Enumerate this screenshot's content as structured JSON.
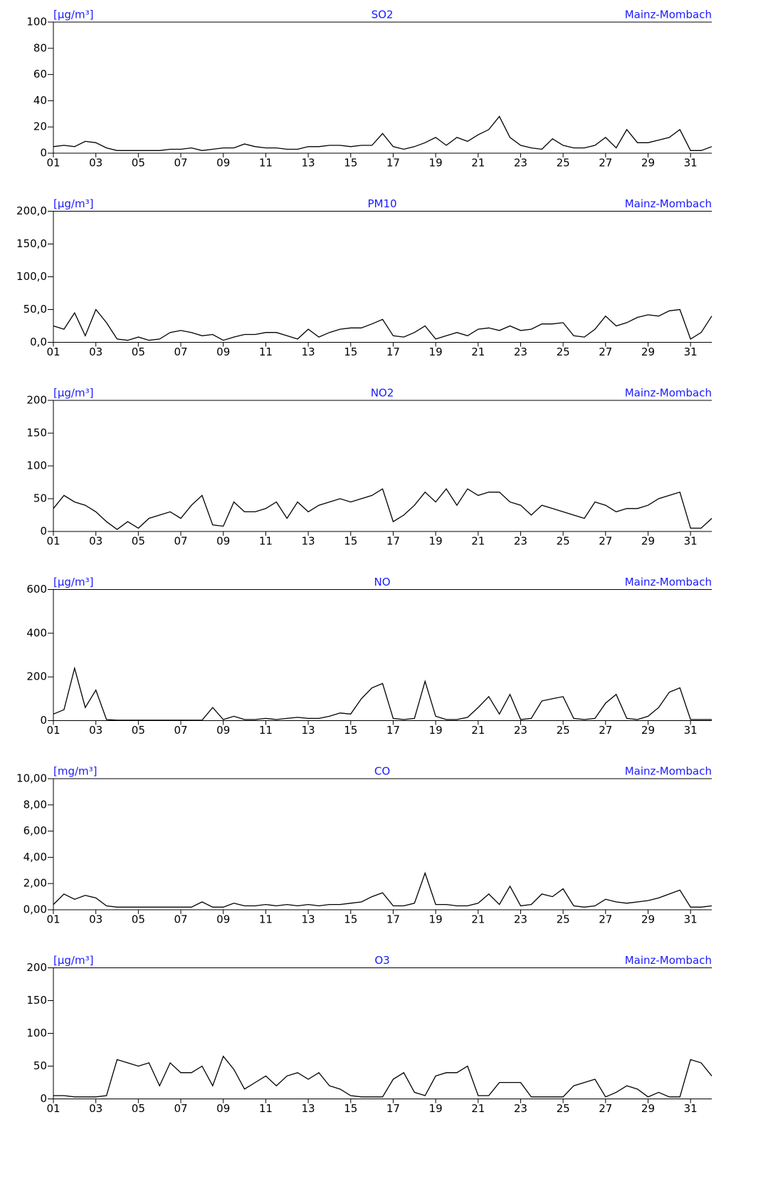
{
  "chart_data": [
    {
      "type": "line",
      "title": "SO2",
      "unit": "[µg/m³]",
      "station": "Mainz-Mombach",
      "color": "#000000",
      "x": [
        1,
        1.5,
        2,
        2.5,
        3,
        3.5,
        4,
        4.5,
        5,
        5.5,
        6,
        6.5,
        7,
        7.5,
        8,
        8.5,
        9,
        9.5,
        10,
        10.5,
        11,
        11.5,
        12,
        12.5,
        13,
        13.5,
        14,
        14.5,
        15,
        15.5,
        16,
        16.5,
        17,
        17.5,
        18,
        18.5,
        19,
        19.5,
        20,
        20.5,
        21,
        21.5,
        22,
        22.5,
        23,
        23.5,
        24,
        24.5,
        25,
        25.5,
        26,
        26.5,
        27,
        27.5,
        28,
        28.5,
        29,
        29.5,
        30,
        30.5,
        31,
        31.5,
        32
      ],
      "values": [
        5,
        6,
        5,
        9,
        8,
        4,
        2,
        2,
        2,
        2,
        2,
        3,
        3,
        4,
        2,
        3,
        4,
        4,
        7,
        5,
        4,
        4,
        3,
        3,
        5,
        5,
        6,
        6,
        5,
        6,
        6,
        15,
        5,
        3,
        5,
        8,
        12,
        6,
        12,
        9,
        14,
        18,
        28,
        12,
        6,
        4,
        3,
        11,
        6,
        4,
        4,
        6,
        12,
        4,
        18,
        8,
        8,
        10,
        12,
        18,
        2,
        2,
        5
      ],
      "xlim": [
        1,
        32
      ],
      "xticks": [
        {
          "value": 1,
          "label": "01"
        },
        {
          "value": 3,
          "label": "03"
        },
        {
          "value": 5,
          "label": "05"
        },
        {
          "value": 7,
          "label": "07"
        },
        {
          "value": 9,
          "label": "09"
        },
        {
          "value": 11,
          "label": "11"
        },
        {
          "value": 13,
          "label": "13"
        },
        {
          "value": 15,
          "label": "15"
        },
        {
          "value": 17,
          "label": "17"
        },
        {
          "value": 19,
          "label": "19"
        },
        {
          "value": 21,
          "label": "21"
        },
        {
          "value": 23,
          "label": "23"
        },
        {
          "value": 25,
          "label": "25"
        },
        {
          "value": 27,
          "label": "27"
        },
        {
          "value": 29,
          "label": "29"
        },
        {
          "value": 31,
          "label": "31"
        }
      ],
      "ylim": [
        0,
        100
      ],
      "yticks": [
        0,
        20,
        40,
        60,
        80,
        100
      ]
    },
    {
      "type": "line",
      "title": "PM10",
      "unit": "[µg/m³]",
      "station": "Mainz-Mombach",
      "color": "#000000",
      "x": [
        1,
        1.5,
        2,
        2.5,
        3,
        3.5,
        4,
        4.5,
        5,
        5.5,
        6,
        6.5,
        7,
        7.5,
        8,
        8.5,
        9,
        9.5,
        10,
        10.5,
        11,
        11.5,
        12,
        12.5,
        13,
        13.5,
        14,
        14.5,
        15,
        15.5,
        16,
        16.5,
        17,
        17.5,
        18,
        18.5,
        19,
        19.5,
        20,
        20.5,
        21,
        21.5,
        22,
        22.5,
        23,
        23.5,
        24,
        24.5,
        25,
        25.5,
        26,
        26.5,
        27,
        27.5,
        28,
        28.5,
        29,
        29.5,
        30,
        30.5,
        31,
        31.5,
        32
      ],
      "values": [
        25,
        20,
        45,
        10,
        50,
        30,
        5,
        3,
        8,
        3,
        5,
        15,
        18,
        15,
        10,
        12,
        3,
        8,
        12,
        12,
        15,
        15,
        10,
        5,
        20,
        8,
        15,
        20,
        22,
        22,
        28,
        35,
        10,
        8,
        15,
        25,
        5,
        10,
        15,
        10,
        20,
        22,
        18,
        25,
        18,
        20,
        28,
        28,
        30,
        10,
        8,
        20,
        40,
        25,
        30,
        38,
        42,
        40,
        48,
        50,
        5,
        15,
        40
      ],
      "xlim": [
        1,
        32
      ],
      "xticks": [
        {
          "value": 1,
          "label": "01"
        },
        {
          "value": 3,
          "label": "03"
        },
        {
          "value": 5,
          "label": "05"
        },
        {
          "value": 7,
          "label": "07"
        },
        {
          "value": 9,
          "label": "09"
        },
        {
          "value": 11,
          "label": "11"
        },
        {
          "value": 13,
          "label": "13"
        },
        {
          "value": 15,
          "label": "15"
        },
        {
          "value": 17,
          "label": "17"
        },
        {
          "value": 19,
          "label": "19"
        },
        {
          "value": 21,
          "label": "21"
        },
        {
          "value": 23,
          "label": "23"
        },
        {
          "value": 25,
          "label": "25"
        },
        {
          "value": 27,
          "label": "27"
        },
        {
          "value": 29,
          "label": "29"
        },
        {
          "value": 31,
          "label": "31"
        }
      ],
      "ylim": [
        0,
        200
      ],
      "yticks": [
        {
          "value": 0,
          "label": "0,0"
        },
        {
          "value": 50,
          "label": "50,0"
        },
        {
          "value": 100,
          "label": "100,0"
        },
        {
          "value": 150,
          "label": "150,0"
        },
        {
          "value": 200,
          "label": "200,0"
        }
      ]
    },
    {
      "type": "line",
      "title": "NO2",
      "unit": "[µg/m³]",
      "station": "Mainz-Mombach",
      "color": "#000000",
      "x": [
        1,
        1.5,
        2,
        2.5,
        3,
        3.5,
        4,
        4.5,
        5,
        5.5,
        6,
        6.5,
        7,
        7.5,
        8,
        8.5,
        9,
        9.5,
        10,
        10.5,
        11,
        11.5,
        12,
        12.5,
        13,
        13.5,
        14,
        14.5,
        15,
        15.5,
        16,
        16.5,
        17,
        17.5,
        18,
        18.5,
        19,
        19.5,
        20,
        20.5,
        21,
        21.5,
        22,
        22.5,
        23,
        23.5,
        24,
        24.5,
        25,
        25.5,
        26,
        26.5,
        27,
        27.5,
        28,
        28.5,
        29,
        29.5,
        30,
        30.5,
        31,
        31.5,
        32
      ],
      "values": [
        35,
        55,
        45,
        40,
        30,
        15,
        3,
        15,
        5,
        20,
        25,
        30,
        20,
        40,
        55,
        10,
        8,
        45,
        30,
        30,
        35,
        45,
        20,
        45,
        30,
        40,
        45,
        50,
        45,
        50,
        55,
        65,
        15,
        25,
        40,
        60,
        45,
        65,
        40,
        65,
        55,
        60,
        60,
        45,
        40,
        25,
        40,
        35,
        30,
        25,
        20,
        45,
        40,
        30,
        35,
        35,
        40,
        50,
        55,
        60,
        5,
        5,
        20
      ],
      "xlim": [
        1,
        32
      ],
      "xticks": [
        {
          "value": 1,
          "label": "01"
        },
        {
          "value": 3,
          "label": "03"
        },
        {
          "value": 5,
          "label": "05"
        },
        {
          "value": 7,
          "label": "07"
        },
        {
          "value": 9,
          "label": "09"
        },
        {
          "value": 11,
          "label": "11"
        },
        {
          "value": 13,
          "label": "13"
        },
        {
          "value": 15,
          "label": "15"
        },
        {
          "value": 17,
          "label": "17"
        },
        {
          "value": 19,
          "label": "19"
        },
        {
          "value": 21,
          "label": "21"
        },
        {
          "value": 23,
          "label": "23"
        },
        {
          "value": 25,
          "label": "25"
        },
        {
          "value": 27,
          "label": "27"
        },
        {
          "value": 29,
          "label": "29"
        },
        {
          "value": 31,
          "label": "31"
        }
      ],
      "ylim": [
        0,
        200
      ],
      "yticks": [
        0,
        50,
        100,
        150,
        200
      ]
    },
    {
      "type": "line",
      "title": "NO",
      "unit": "[µg/m³]",
      "station": "Mainz-Mombach",
      "color": "#000000",
      "x": [
        1,
        1.5,
        2,
        2.5,
        3,
        3.5,
        4,
        4.5,
        5,
        5.5,
        6,
        6.5,
        7,
        7.5,
        8,
        8.5,
        9,
        9.5,
        10,
        10.5,
        11,
        11.5,
        12,
        12.5,
        13,
        13.5,
        14,
        14.5,
        15,
        15.5,
        16,
        16.5,
        17,
        17.5,
        18,
        18.5,
        19,
        19.5,
        20,
        20.5,
        21,
        21.5,
        22,
        22.5,
        23,
        23.5,
        24,
        24.5,
        25,
        25.5,
        26,
        26.5,
        27,
        27.5,
        28,
        28.5,
        29,
        29.5,
        30,
        30.5,
        31,
        31.5,
        32
      ],
      "values": [
        30,
        50,
        240,
        60,
        140,
        5,
        2,
        2,
        2,
        2,
        2,
        2,
        2,
        2,
        2,
        60,
        5,
        20,
        5,
        5,
        10,
        5,
        10,
        15,
        10,
        10,
        20,
        35,
        30,
        100,
        150,
        170,
        10,
        5,
        10,
        180,
        20,
        5,
        5,
        15,
        60,
        110,
        30,
        120,
        5,
        10,
        90,
        100,
        110,
        10,
        5,
        10,
        80,
        120,
        10,
        5,
        20,
        60,
        130,
        150,
        5,
        5,
        5
      ],
      "xlim": [
        1,
        32
      ],
      "xticks": [
        {
          "value": 1,
          "label": "01"
        },
        {
          "value": 3,
          "label": "03"
        },
        {
          "value": 5,
          "label": "05"
        },
        {
          "value": 7,
          "label": "07"
        },
        {
          "value": 9,
          "label": "09"
        },
        {
          "value": 11,
          "label": "11"
        },
        {
          "value": 13,
          "label": "13"
        },
        {
          "value": 15,
          "label": "15"
        },
        {
          "value": 17,
          "label": "17"
        },
        {
          "value": 19,
          "label": "19"
        },
        {
          "value": 21,
          "label": "21"
        },
        {
          "value": 23,
          "label": "23"
        },
        {
          "value": 25,
          "label": "25"
        },
        {
          "value": 27,
          "label": "27"
        },
        {
          "value": 29,
          "label": "29"
        },
        {
          "value": 31,
          "label": "31"
        }
      ],
      "ylim": [
        0,
        600
      ],
      "yticks": [
        0,
        200,
        400,
        600
      ]
    },
    {
      "type": "line",
      "title": "CO",
      "unit": "[mg/m³]",
      "station": "Mainz-Mombach",
      "color": "#000000",
      "x": [
        1,
        1.5,
        2,
        2.5,
        3,
        3.5,
        4,
        4.5,
        5,
        5.5,
        6,
        6.5,
        7,
        7.5,
        8,
        8.5,
        9,
        9.5,
        10,
        10.5,
        11,
        11.5,
        12,
        12.5,
        13,
        13.5,
        14,
        14.5,
        15,
        15.5,
        16,
        16.5,
        17,
        17.5,
        18,
        18.5,
        19,
        19.5,
        20,
        20.5,
        21,
        21.5,
        22,
        22.5,
        23,
        23.5,
        24,
        24.5,
        25,
        25.5,
        26,
        26.5,
        27,
        27.5,
        28,
        28.5,
        29,
        29.5,
        30,
        30.5,
        31,
        31.5,
        32
      ],
      "values": [
        0.4,
        1.2,
        0.8,
        1.1,
        0.9,
        0.3,
        0.2,
        0.2,
        0.2,
        0.2,
        0.2,
        0.2,
        0.2,
        0.2,
        0.6,
        0.2,
        0.2,
        0.5,
        0.3,
        0.3,
        0.4,
        0.3,
        0.4,
        0.3,
        0.4,
        0.3,
        0.4,
        0.4,
        0.5,
        0.6,
        1.0,
        1.3,
        0.3,
        0.3,
        0.5,
        2.8,
        0.4,
        0.4,
        0.3,
        0.3,
        0.5,
        1.2,
        0.4,
        1.8,
        0.3,
        0.4,
        1.2,
        1.0,
        1.6,
        0.3,
        0.2,
        0.3,
        0.8,
        0.6,
        0.5,
        0.6,
        0.7,
        0.9,
        1.2,
        1.5,
        0.2,
        0.2,
        0.3
      ],
      "xlim": [
        1,
        32
      ],
      "xticks": [
        {
          "value": 1,
          "label": "01"
        },
        {
          "value": 3,
          "label": "03"
        },
        {
          "value": 5,
          "label": "05"
        },
        {
          "value": 7,
          "label": "07"
        },
        {
          "value": 9,
          "label": "09"
        },
        {
          "value": 11,
          "label": "11"
        },
        {
          "value": 13,
          "label": "13"
        },
        {
          "value": 15,
          "label": "15"
        },
        {
          "value": 17,
          "label": "17"
        },
        {
          "value": 19,
          "label": "19"
        },
        {
          "value": 21,
          "label": "21"
        },
        {
          "value": 23,
          "label": "23"
        },
        {
          "value": 25,
          "label": "25"
        },
        {
          "value": 27,
          "label": "27"
        },
        {
          "value": 29,
          "label": "29"
        },
        {
          "value": 31,
          "label": "31"
        }
      ],
      "ylim": [
        0,
        10
      ],
      "yticks": [
        {
          "value": 0,
          "label": "0,00"
        },
        {
          "value": 2,
          "label": "2,00"
        },
        {
          "value": 4,
          "label": "4,00"
        },
        {
          "value": 6,
          "label": "6,00"
        },
        {
          "value": 8,
          "label": "8,00"
        },
        {
          "value": 10,
          "label": "10,00"
        }
      ]
    },
    {
      "type": "line",
      "title": "O3",
      "unit": "[µg/m³]",
      "station": "Mainz-Mombach",
      "color": "#000000",
      "x": [
        1,
        1.5,
        2,
        2.5,
        3,
        3.5,
        4,
        4.5,
        5,
        5.5,
        6,
        6.5,
        7,
        7.5,
        8,
        8.5,
        9,
        9.5,
        10,
        10.5,
        11,
        11.5,
        12,
        12.5,
        13,
        13.5,
        14,
        14.5,
        15,
        15.5,
        16,
        16.5,
        17,
        17.5,
        18,
        18.5,
        19,
        19.5,
        20,
        20.5,
        21,
        21.5,
        22,
        22.5,
        23,
        23.5,
        24,
        24.5,
        25,
        25.5,
        26,
        26.5,
        27,
        27.5,
        28,
        28.5,
        29,
        29.5,
        30,
        30.5,
        31,
        31.5,
        32
      ],
      "values": [
        5,
        5,
        3,
        3,
        3,
        5,
        60,
        55,
        50,
        55,
        20,
        55,
        40,
        40,
        50,
        20,
        65,
        45,
        15,
        25,
        35,
        20,
        35,
        40,
        30,
        40,
        20,
        15,
        5,
        3,
        3,
        3,
        30,
        40,
        10,
        5,
        35,
        40,
        40,
        50,
        5,
        5,
        25,
        25,
        25,
        3,
        3,
        3,
        3,
        20,
        25,
        30,
        3,
        10,
        20,
        15,
        3,
        10,
        3,
        3,
        60,
        55,
        35
      ],
      "xlim": [
        1,
        32
      ],
      "xticks": [
        {
          "value": 1,
          "label": "01"
        },
        {
          "value": 3,
          "label": "03"
        },
        {
          "value": 5,
          "label": "05"
        },
        {
          "value": 7,
          "label": "07"
        },
        {
          "value": 9,
          "label": "09"
        },
        {
          "value": 11,
          "label": "11"
        },
        {
          "value": 13,
          "label": "13"
        },
        {
          "value": 15,
          "label": "15"
        },
        {
          "value": 17,
          "label": "17"
        },
        {
          "value": 19,
          "label": "19"
        },
        {
          "value": 21,
          "label": "21"
        },
        {
          "value": 23,
          "label": "23"
        },
        {
          "value": 25,
          "label": "25"
        },
        {
          "value": 27,
          "label": "27"
        },
        {
          "value": 29,
          "label": "29"
        },
        {
          "value": 31,
          "label": "31"
        }
      ],
      "ylim": [
        0,
        200
      ],
      "yticks": [
        0,
        50,
        100,
        150,
        200
      ]
    }
  ]
}
